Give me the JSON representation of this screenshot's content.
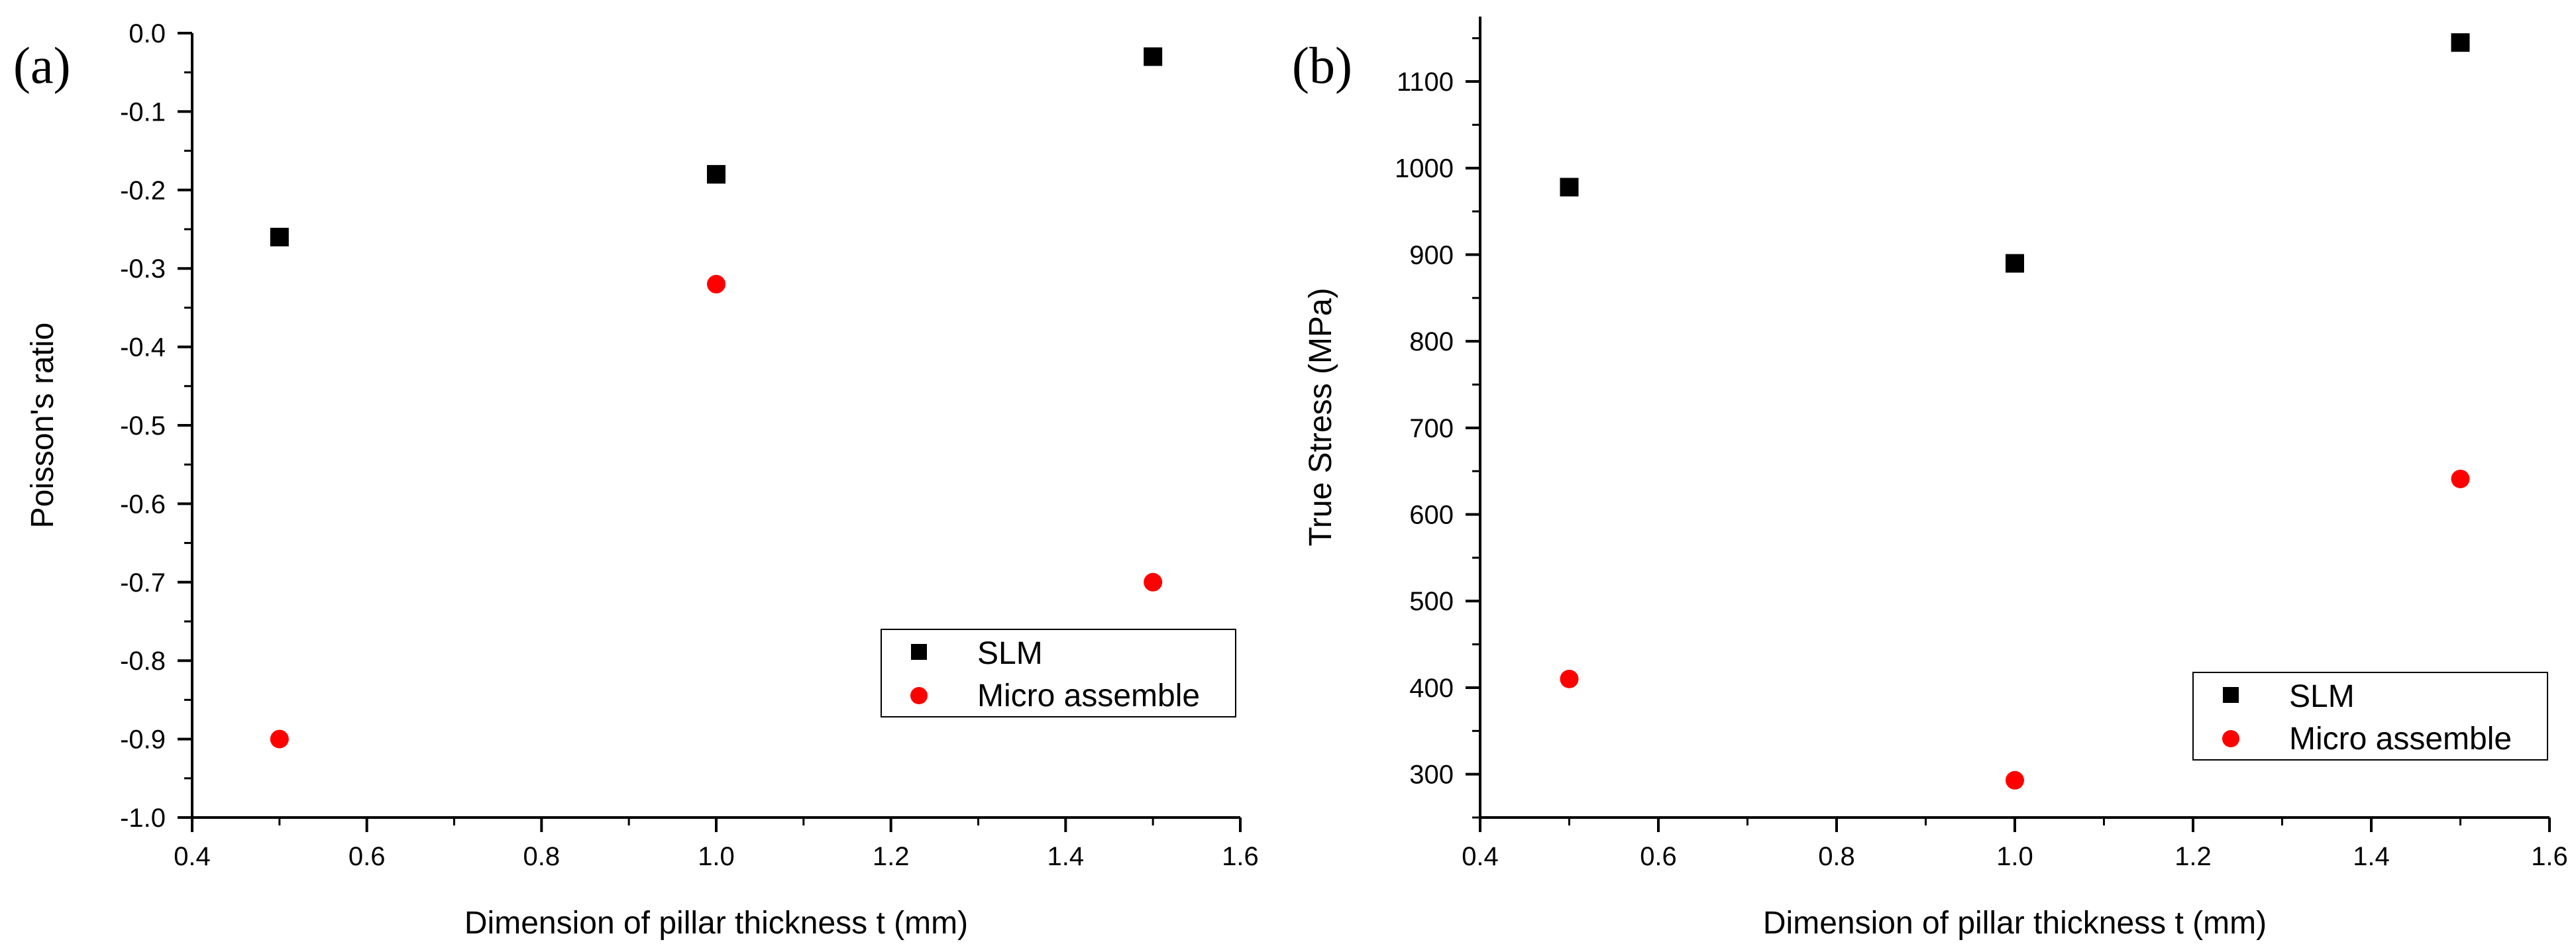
{
  "chart_data": [
    {
      "panel": "(a)",
      "type": "scatter",
      "title": "",
      "xlabel": "Dimension of pillar thickness t (mm)",
      "ylabel": "Poisson's ratio",
      "xlim": [
        0.4,
        1.6
      ],
      "ylim": [
        -1.0,
        0.0
      ],
      "xticks": [
        0.4,
        0.6,
        0.8,
        1.0,
        1.2,
        1.4,
        1.6
      ],
      "xtick_labels": [
        "0.4",
        "0.6",
        "0.8",
        "1.0",
        "1.2",
        "1.4",
        "1.6"
      ],
      "yticks": [
        0.0,
        -0.1,
        -0.2,
        -0.3,
        -0.4,
        -0.5,
        -0.6,
        -0.7,
        -0.8,
        -0.9,
        -1.0
      ],
      "ytick_labels": [
        "0.0",
        "-0.1",
        "-0.2",
        "-0.3",
        "-0.4",
        "-0.5",
        "-0.6",
        "-0.7",
        "-0.8",
        "-0.9",
        "-1.0"
      ],
      "grid": false,
      "legend_position": "lower-right",
      "series": [
        {
          "name": "SLM",
          "marker": "square",
          "color": "#000000",
          "x": [
            0.5,
            1.0,
            1.5
          ],
          "y": [
            -0.26,
            -0.18,
            -0.03
          ]
        },
        {
          "name": "Micro assemble",
          "marker": "circle",
          "color": "#ff0000",
          "x": [
            0.5,
            1.0,
            1.5
          ],
          "y": [
            -0.9,
            -0.32,
            -0.7
          ]
        }
      ]
    },
    {
      "panel": "(b)",
      "type": "scatter",
      "title": "",
      "xlabel": "Dimension of pillar thickness t (mm)",
      "ylabel": "True Stress (MPa)",
      "xlim": [
        0.4,
        1.6
      ],
      "ylim": [
        250,
        1175
      ],
      "xticks": [
        0.4,
        0.6,
        0.8,
        1.0,
        1.2,
        1.4,
        1.6
      ],
      "xtick_labels": [
        "0.4",
        "0.6",
        "0.8",
        "1.0",
        "1.2",
        "1.4",
        "1.6"
      ],
      "yticks": [
        300,
        400,
        500,
        600,
        700,
        800,
        900,
        1000,
        1100
      ],
      "ytick_labels": [
        "300",
        "400",
        "500",
        "600",
        "700",
        "800",
        "900",
        "1000",
        "1100"
      ],
      "grid": false,
      "legend_position": "lower-right",
      "series": [
        {
          "name": "SLM",
          "marker": "square",
          "color": "#000000",
          "x": [
            0.5,
            1.0,
            1.5
          ],
          "y": [
            978,
            890,
            1145
          ]
        },
        {
          "name": "Micro assemble",
          "marker": "circle",
          "color": "#ff0000",
          "x": [
            0.5,
            1.0,
            1.5
          ],
          "y": [
            410,
            293,
            641
          ]
        }
      ]
    }
  ]
}
